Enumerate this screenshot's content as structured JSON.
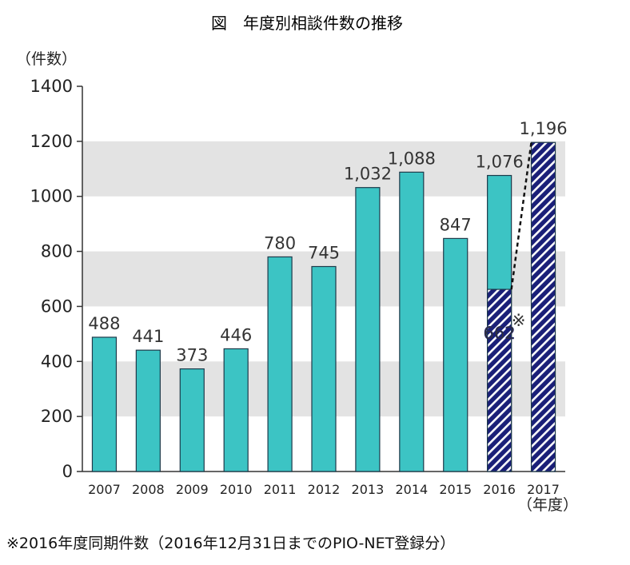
{
  "chart_data": {
    "type": "bar",
    "title": "図　年度別相談件数の推移",
    "ylabel": "（件数）",
    "xlabel": "（年度）",
    "ylim": [
      0,
      1400
    ],
    "yticks": [
      0,
      200,
      400,
      600,
      800,
      1000,
      1200,
      1400
    ],
    "categories": [
      "2007",
      "2008",
      "2009",
      "2010",
      "2011",
      "2012",
      "2013",
      "2014",
      "2015",
      "2016",
      "2017"
    ],
    "values": [
      488,
      441,
      373,
      446,
      780,
      745,
      1032,
      1088,
      847,
      1076,
      1196
    ],
    "value_labels": [
      "488",
      "441",
      "373",
      "446",
      "780",
      "745",
      "1,032",
      "1,088",
      "847",
      "1,076",
      "1,196"
    ],
    "partial": {
      "category": "2016",
      "value": 662,
      "label": "662",
      "mark": "※"
    },
    "hatched_categories": [
      "2017"
    ],
    "grid": "alternating-bands",
    "footnote": "※2016年度同期件数（2016年12月31日までのPIO-NET登録分）"
  },
  "colors": {
    "bar": "#3cc4c4",
    "bar_border": "#1e3a4a",
    "hatch_bg": "#1a1f78",
    "hatch_line": "#ffffff",
    "band": "#e3e3e3",
    "axis": "#333333"
  }
}
